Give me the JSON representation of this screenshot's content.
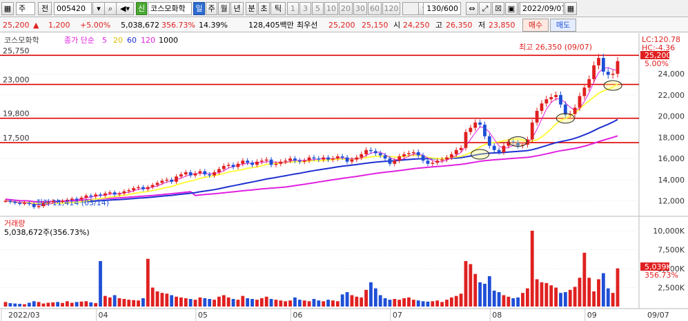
{
  "toolbar": {
    "market": "주",
    "prev_label": "전",
    "code": "005420",
    "new_label": "신",
    "name": "코스모화학",
    "periods": [
      "일",
      "주",
      "월",
      "년",
      "분",
      "초",
      "틱"
    ],
    "selected_period": "일",
    "intervals": [
      "1",
      "3",
      "5",
      "10",
      "20",
      "30",
      "60",
      "120"
    ],
    "count": "130/600",
    "date": "2022/09/07"
  },
  "quote": {
    "price": "25,200",
    "change": "1,200",
    "change_pct": "+5.00%",
    "volume": "5,038,672",
    "volume_ratio": "356.73%",
    "turnover": "14.39%",
    "amount": "128,405백만",
    "bid_label": "최우선",
    "ask": "25,200",
    "bid": "25,150",
    "open_label": "시",
    "open": "24,250",
    "high_label": "고",
    "high": "26,350",
    "low_label": "저",
    "low": "23,850",
    "buy_label": "매수",
    "sell_label": "매도"
  },
  "legend": {
    "name": "코스모화학",
    "price_label": "종가 단순",
    "ma": [
      "5",
      "20",
      "60",
      "120",
      "1000"
    ],
    "ma_colors": [
      "#e020e0",
      "#e8d800",
      "#1e2fd0",
      "#e020e0",
      "#000000"
    ]
  },
  "volume_legend": {
    "title": "거래량",
    "value": "5,038,672주(356.73%)"
  },
  "colors": {
    "up": "#e02020",
    "down": "#1f4fd6",
    "ma5": "#e020e0",
    "ma20": "#ffff40",
    "ma60": "#1e2fd0",
    "ma120": "#e020e0",
    "hline": "#e00000"
  },
  "annotations": {
    "lc": "LC:120.78",
    "hc": "HC:-4.36",
    "high_text": "최고 26,350 (09/07)",
    "low_text": "최저 11,414 (03/14)",
    "last_price": "25,200",
    "last_pct": "5.00%",
    "vol_last": "5,039K",
    "vol_pct": "356.73%"
  },
  "chart_data": {
    "type": "candlestick",
    "price_axis": [
      "24,000",
      "22,000",
      "20,000",
      "18,000",
      "16,000",
      "14,000",
      "12,000"
    ],
    "price_ticks": [
      24000,
      22000,
      20000,
      18000,
      16000,
      14000,
      12000
    ],
    "ylim": [
      10800,
      27200
    ],
    "hlines": [
      {
        "label": "25,750",
        "value": 25750
      },
      {
        "label": "23,000",
        "value": 23000
      },
      {
        "label": "19,800",
        "value": 19800
      },
      {
        "label": "17,500",
        "value": 17500
      }
    ],
    "volume_axis": [
      "10,000K",
      "7,500K",
      "5,000K",
      "2,500K"
    ],
    "volume_ticks": [
      10000,
      7500,
      5000,
      2500
    ],
    "vol_max": 11000,
    "x_labels": [
      "2022/03",
      "04",
      "05",
      "06",
      "07",
      "08",
      "09",
      "09/07"
    ],
    "x_label_idx": [
      0,
      20,
      41,
      61,
      82,
      103,
      123,
      129
    ],
    "ellipses": [
      {
        "idx": 100,
        "value": 16400
      },
      {
        "idx": 108,
        "value": 17600
      },
      {
        "idx": 118,
        "value": 19800
      },
      {
        "idx": 128,
        "value": 22900
      }
    ],
    "closes": [
      12000,
      11900,
      11800,
      11750,
      11800,
      11700,
      11414,
      11500,
      11800,
      11900,
      12000,
      11950,
      12000,
      12100,
      12200,
      12150,
      12300,
      12500,
      12400,
      12600,
      12500,
      12700,
      12800,
      12600,
      12700,
      12900,
      13000,
      13200,
      13300,
      13100,
      13300,
      13500,
      13700,
      13900,
      14000,
      13800,
      14300,
      14500,
      14700,
      14400,
      14600,
      14800,
      14500,
      14400,
      14700,
      15000,
      15300,
      15400,
      15200,
      15500,
      15800,
      15600,
      15400,
      15700,
      15800,
      15900,
      15400,
      15500,
      15700,
      15800,
      16000,
      15800,
      15700,
      15800,
      16100,
      16000,
      15900,
      16100,
      15900,
      16000,
      16200,
      16100,
      15700,
      15900,
      16100,
      16400,
      16800,
      16700,
      16500,
      16300,
      16000,
      15500,
      15800,
      16200,
      16400,
      16500,
      16600,
      16300,
      15800,
      15500,
      15600,
      15800,
      15900,
      16100,
      16400,
      16800,
      17000,
      18500,
      18900,
      19400,
      19200,
      18100,
      17200,
      16800,
      16600,
      17200,
      17600,
      17500,
      17200,
      17300,
      17800,
      19400,
      20500,
      21200,
      21600,
      21800,
      22000,
      21100,
      20100,
      20200,
      20800,
      21900,
      22700,
      23500,
      24800,
      25500,
      24200,
      23900,
      24000,
      25200
    ],
    "volumes": [
      600,
      450,
      400,
      350,
      300,
      500,
      700,
      600,
      400,
      500,
      550,
      600,
      480,
      700,
      500,
      600,
      650,
      700,
      550,
      450,
      6000,
      1400,
      1200,
      1500,
      1100,
      1000,
      900,
      850,
      800,
      1100,
      6300,
      2500,
      2000,
      1800,
      1700,
      1500,
      1300,
      1200,
      1100,
      1000,
      900,
      1200,
      1100,
      1000,
      900,
      1300,
      1500,
      1200,
      1000,
      900,
      1400,
      1100,
      1000,
      900,
      1100,
      1300,
      1000,
      900,
      800,
      700,
      800,
      1200,
      900,
      800,
      700,
      1000,
      800,
      700,
      900,
      800,
      700,
      1600,
      1900,
      1500,
      1300,
      1200,
      2200,
      3200,
      2400,
      1500,
      1100,
      900,
      1000,
      900,
      1100,
      1200,
      900,
      800,
      700,
      650,
      700,
      800,
      600,
      900,
      1200,
      1400,
      1700,
      6000,
      5600,
      4300,
      3200,
      3000,
      4000,
      2100,
      1900,
      1500,
      1300,
      1100,
      1200,
      1800,
      2400,
      10000,
      3600,
      3200,
      3100,
      2800,
      2500,
      1800,
      1900,
      2200,
      2600,
      3800,
      7100,
      3800,
      2000,
      3600,
      4400,
      2400,
      1800,
      5039
    ]
  }
}
